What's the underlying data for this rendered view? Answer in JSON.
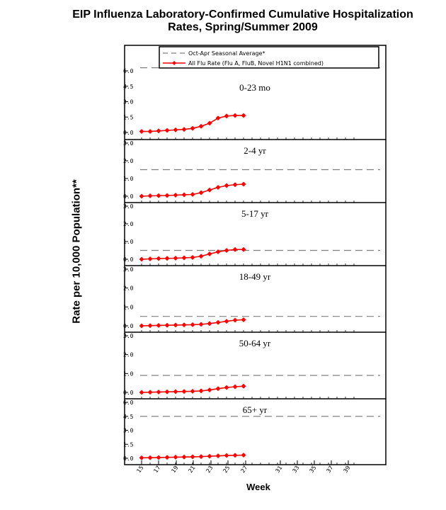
{
  "chart_data": {
    "type": "line",
    "title": [
      "EIP Influenza Laboratory-Confirmed Cumulative Hospitalization",
      "Rates, Spring/Summer 2009"
    ],
    "xlabel": "Week",
    "ylabel": "Rate per 10,000 Population**",
    "x_ticks": [
      "15",
      "17",
      "19",
      "21",
      "23",
      "25",
      "27",
      "31",
      "33",
      "35",
      "37",
      "39"
    ],
    "legend": {
      "position": "top",
      "entries": [
        "Oct-Apr Seasonal Average*",
        "All Flu Rate (Flu A, FluB, Novel H1N1 combined)"
      ]
    },
    "colors": {
      "rate": "#ff0000",
      "seasonal_average": "#808080"
    },
    "panels": [
      {
        "label": "0-23 mo",
        "ylim": [
          0,
          6.0
        ],
        "y_ticks": [
          "0.0",
          "1.5",
          "3.0",
          "4.5",
          "6.0"
        ],
        "seasonal_average": 6.3,
        "x": [
          15,
          16,
          17,
          18,
          19,
          20,
          21,
          22,
          23,
          24,
          25,
          26,
          27
        ],
        "values": [
          0.1,
          0.1,
          0.15,
          0.2,
          0.25,
          0.3,
          0.4,
          0.6,
          0.9,
          1.4,
          1.6,
          1.65,
          1.65
        ]
      },
      {
        "label": "2-4 yr",
        "ylim": [
          0,
          3.0
        ],
        "y_ticks": [
          "0.0",
          "1.0",
          "2.0",
          "3.0"
        ],
        "seasonal_average": 1.5,
        "x": [
          15,
          16,
          17,
          18,
          19,
          20,
          21,
          22,
          23,
          24,
          25,
          26,
          27
        ],
        "values": [
          0.0,
          0.02,
          0.03,
          0.04,
          0.06,
          0.08,
          0.1,
          0.2,
          0.35,
          0.5,
          0.6,
          0.65,
          0.68
        ]
      },
      {
        "label": "5-17 yr",
        "ylim": [
          0,
          3.0
        ],
        "y_ticks": [
          "0.0",
          "1.0",
          "2.0",
          "3.0"
        ],
        "seasonal_average": 0.5,
        "x": [
          15,
          16,
          17,
          18,
          19,
          20,
          21,
          22,
          23,
          24,
          25,
          26,
          27
        ],
        "values": [
          0.0,
          0.02,
          0.04,
          0.05,
          0.06,
          0.08,
          0.1,
          0.17,
          0.3,
          0.42,
          0.5,
          0.55,
          0.55
        ]
      },
      {
        "label": "18-49 yr",
        "ylim": [
          0,
          3.0
        ],
        "y_ticks": [
          "0.0",
          "1.0",
          "2.0",
          "3.0"
        ],
        "seasonal_average": 0.5,
        "x": [
          15,
          16,
          17,
          18,
          19,
          20,
          21,
          22,
          23,
          24,
          25,
          26,
          27
        ],
        "values": [
          0.0,
          0.01,
          0.02,
          0.03,
          0.04,
          0.05,
          0.06,
          0.08,
          0.12,
          0.18,
          0.24,
          0.3,
          0.32
        ]
      },
      {
        "label": "50-64 yr",
        "ylim": [
          0,
          3.0
        ],
        "y_ticks": [
          "0.0",
          "1.0",
          "2.0",
          "3.0"
        ],
        "seasonal_average": 0.9,
        "x": [
          15,
          16,
          17,
          18,
          19,
          20,
          21,
          22,
          23,
          24,
          25,
          26,
          27
        ],
        "values": [
          0.0,
          0.01,
          0.02,
          0.03,
          0.04,
          0.05,
          0.06,
          0.08,
          0.13,
          0.2,
          0.26,
          0.3,
          0.33
        ]
      },
      {
        "label": "65+ yr",
        "ylim": [
          0,
          6.0
        ],
        "y_ticks": [
          "0.0",
          "1.5",
          "3.0",
          "4.5",
          "6.0"
        ],
        "seasonal_average": 4.5,
        "x": [
          15,
          16,
          17,
          18,
          19,
          20,
          21,
          22,
          23,
          24,
          25,
          26,
          27
        ],
        "values": [
          0.05,
          0.06,
          0.08,
          0.1,
          0.12,
          0.14,
          0.16,
          0.18,
          0.22,
          0.26,
          0.3,
          0.32,
          0.34
        ]
      }
    ]
  }
}
